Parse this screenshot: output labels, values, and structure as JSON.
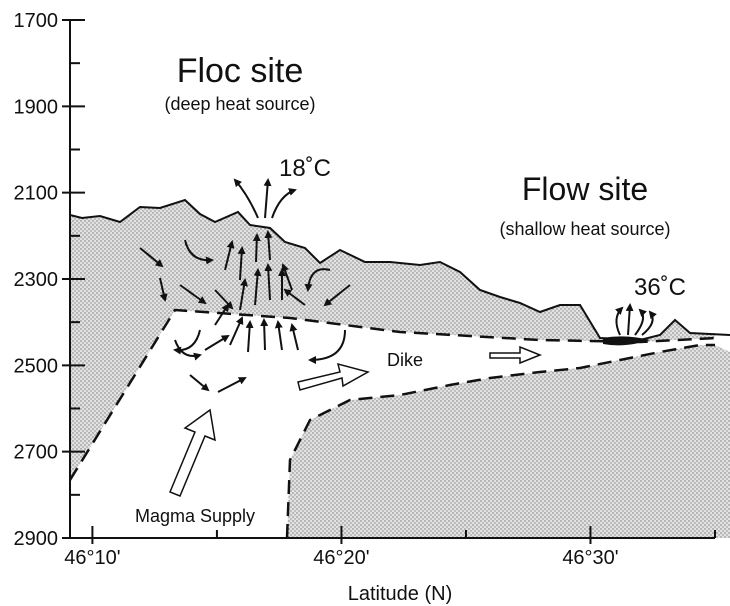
{
  "axes": {
    "ylim": [
      1700,
      2900
    ],
    "yticks": [
      1700,
      1900,
      2100,
      2300,
      2500,
      2700,
      2900
    ],
    "xlim": [
      9.1,
      35
    ],
    "xticks": [
      {
        "value": 10,
        "label": "46°10'"
      },
      {
        "value": 20,
        "label": "46°20'"
      },
      {
        "value": 30,
        "label": "46°30'"
      }
    ],
    "xlabel": "Latitude (N)"
  },
  "labels": {
    "floc_site": "Floc site",
    "floc_sub": "(deep heat source)",
    "floc_temp": "18˚C",
    "flow_site": "Flow site",
    "flow_sub": "(shallow heat source)",
    "flow_temp": "36˚C",
    "dike": "Dike",
    "magma": "Magma Supply"
  }
}
